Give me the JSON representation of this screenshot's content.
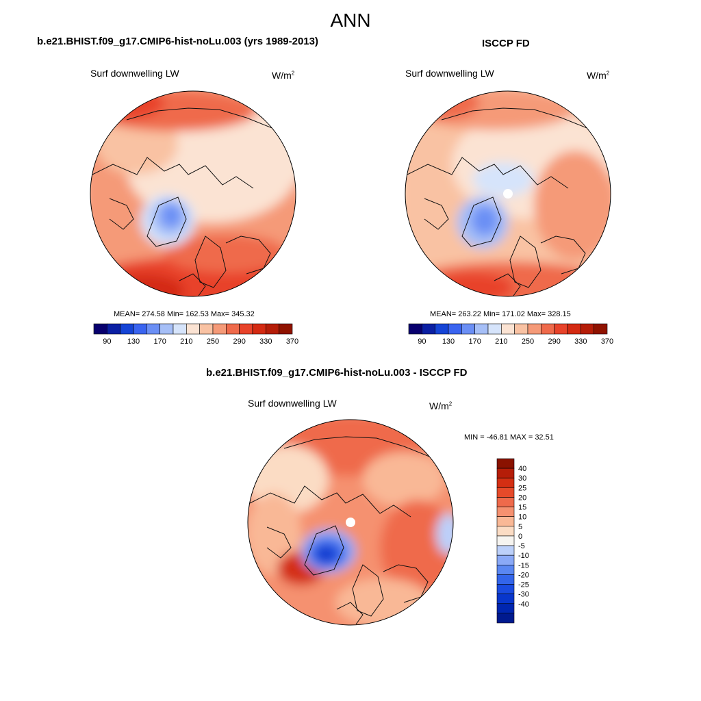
{
  "title": "ANN",
  "panels": [
    {
      "case": "b.e21.BHIST.f09_g17.CMIP6-hist-noLu.003 (yrs 1989-2013)",
      "left_label": "Surf downwelling LW",
      "units_base": "W/m",
      "units_exp": "2",
      "stats": "MEAN= 274.58  Min= 162.53  Max= 345.32"
    },
    {
      "case": "ISCCP FD",
      "left_label": "Surf downwelling LW",
      "units_base": "W/m",
      "units_exp": "2",
      "stats": "MEAN= 263.22  Min= 171.02  Max= 328.15"
    },
    {
      "case": "b.e21.BHIST.f09_g17.CMIP6-hist-noLu.003 - ISCCP FD",
      "left_label": "Surf downwelling LW",
      "units_base": "W/m",
      "units_exp": "2",
      "stats": "MIN = -46.81 MAX =  32.51"
    }
  ],
  "colorbar_abs": {
    "colors": [
      "#08006e",
      "#0a1fa3",
      "#1544d6",
      "#3a64f0",
      "#6b8ff5",
      "#a6bff7",
      "#d6e4fb",
      "#fbe3d3",
      "#f9c2a3",
      "#f59a78",
      "#ef6a4b",
      "#e8432a",
      "#d42a12",
      "#b51d08",
      "#8f1200"
    ],
    "labels": [
      "90",
      "130",
      "170",
      "210",
      "250",
      "290",
      "330",
      "370"
    ]
  },
  "colorbar_diff": {
    "colors": [
      "#001a8f",
      "#0026b0",
      "#0836cc",
      "#1a4be0",
      "#3365ea",
      "#5a87f2",
      "#8aa9f7",
      "#bcd0fa",
      "#f6f4f0",
      "#fbdcc4",
      "#f9b896",
      "#f59170",
      "#ef6a4b",
      "#e64a2a",
      "#d42f13",
      "#b51d08",
      "#8a1200"
    ],
    "labels": [
      "40",
      "30",
      "25",
      "20",
      "15",
      "10",
      "5",
      "0",
      "-5",
      "-10",
      "-15",
      "-20",
      "-25",
      "-30",
      "-40"
    ]
  },
  "chart_data": [
    {
      "type": "heatmap",
      "title": "b.e21.BHIST.f09_g17.CMIP6-hist-noLu.003 (yrs 1989-2013)",
      "variable": "Surf downwelling LW",
      "units": "W/m2",
      "mean": 274.58,
      "min": 162.53,
      "max": 345.32,
      "levels": [
        90,
        110,
        130,
        150,
        170,
        190,
        210,
        230,
        250,
        270,
        290,
        310,
        330,
        350,
        370
      ]
    },
    {
      "type": "heatmap",
      "title": "ISCCP FD",
      "variable": "Surf downwelling LW",
      "units": "W/m2",
      "mean": 263.22,
      "min": 171.02,
      "max": 328.15,
      "levels": [
        90,
        110,
        130,
        150,
        170,
        190,
        210,
        230,
        250,
        270,
        290,
        310,
        330,
        350,
        370
      ]
    },
    {
      "type": "heatmap",
      "title": "b.e21.BHIST.f09_g17.CMIP6-hist-noLu.003 - ISCCP FD",
      "variable": "Surf downwelling LW",
      "units": "W/m2",
      "min": -46.81,
      "max": 32.51,
      "levels": [
        -40,
        -30,
        -25,
        -20,
        -15,
        -10,
        -5,
        0,
        5,
        10,
        15,
        20,
        25,
        30,
        40
      ]
    }
  ]
}
